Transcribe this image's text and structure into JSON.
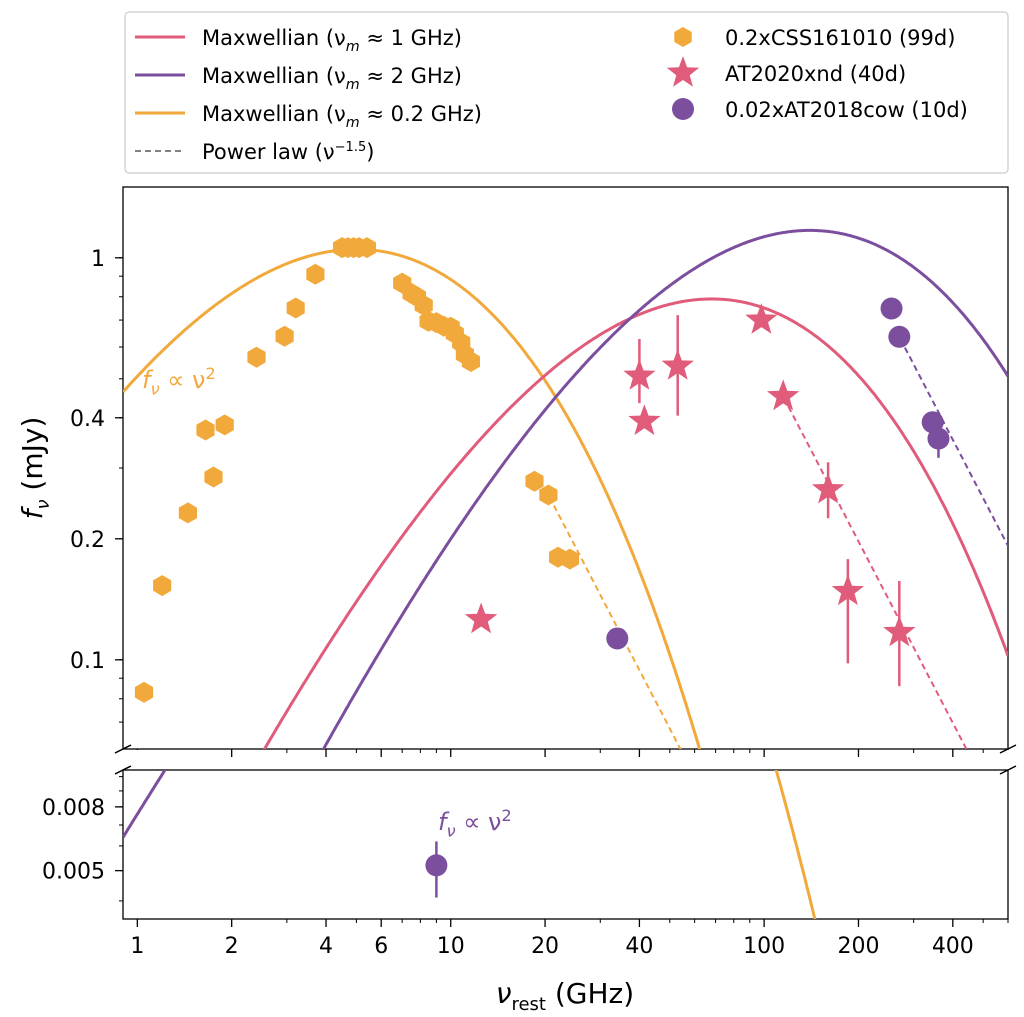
{
  "chart_data": {
    "type": "scatter",
    "xlabel_main": "ν",
    "xlabel_sub": "rest",
    "xlabel_unit": " (GHz)",
    "ylabel_main": "f",
    "ylabel_sub": "ν",
    "ylabel_unit": " (mJy)",
    "x_scale": "log",
    "y_scale": "log",
    "xlim": [
      0.9,
      600
    ],
    "ylim_top_panel": [
      0.06,
      1.5
    ],
    "ylim_bottom_panel": [
      0.0035,
      0.0105
    ],
    "broken_y_axis": true,
    "grid": false,
    "legend_placement": "above plot",
    "x_ticks": [
      {
        "value": 1,
        "label": "1"
      },
      {
        "value": 2,
        "label": "2"
      },
      {
        "value": 4,
        "label": "4"
      },
      {
        "value": 6,
        "label": "6"
      },
      {
        "value": 10,
        "label": "10"
      },
      {
        "value": 20,
        "label": "20"
      },
      {
        "value": 40,
        "label": "40"
      },
      {
        "value": 100,
        "label": "100"
      },
      {
        "value": 200,
        "label": "200"
      },
      {
        "value": 400,
        "label": "400"
      }
    ],
    "y_ticks_top": [
      {
        "value": 1,
        "label": "1"
      },
      {
        "value": 0.4,
        "label": "0.4"
      },
      {
        "value": 0.2,
        "label": "0.2"
      },
      {
        "value": 0.1,
        "label": "0.1"
      }
    ],
    "y_ticks_bottom": [
      {
        "value": 0.008,
        "label": "0.008"
      },
      {
        "value": 0.005,
        "label": "0.005"
      }
    ],
    "legend": [
      {
        "key": "maxwell_1",
        "text": "Maxwellian (ν",
        "sub": "m",
        "tail": " ≈ 1 GHz)",
        "marker": "line",
        "color": "#e05c7a"
      },
      {
        "key": "maxwell_2",
        "text": "Maxwellian (ν",
        "sub": "m",
        "tail": " ≈ 2 GHz)",
        "marker": "line",
        "color": "#7b4f9e"
      },
      {
        "key": "maxwell_02",
        "text": "Maxwellian (ν",
        "sub": "m",
        "tail": " ≈ 0.2 GHz)",
        "marker": "line",
        "color": "#f2a93b"
      },
      {
        "key": "power_law",
        "text": "Power law (ν",
        "sup": "−1.5",
        "tail": ")",
        "marker": "dashed",
        "color": "#808080"
      },
      {
        "key": "css",
        "text": "0.2xCSS161010 (99d)",
        "marker": "hexagon",
        "color": "#f2a93b"
      },
      {
        "key": "at2020xnd",
        "text": "AT2020xnd (40d)",
        "marker": "star",
        "color": "#e05c7a"
      },
      {
        "key": "at2018cow",
        "text": "0.02xAT2018cow (10d)",
        "marker": "circle",
        "color": "#7b4f9e"
      }
    ],
    "annotations": [
      {
        "key": "slope_orange",
        "text": "f",
        "sub": "ν",
        "tail": " ∝ ν",
        "sup": "2",
        "color": "#f2a93b"
      },
      {
        "key": "slope_purple",
        "text": "f",
        "sub": "ν",
        "tail": " ∝ ν",
        "sup": "2",
        "color": "#7b4f9e"
      }
    ],
    "series": [
      {
        "key": "css",
        "name": "0.2xCSS161010 (99d)",
        "marker": "hexagon",
        "color": "#f2a93b",
        "points": [
          {
            "x": 1.05,
            "y": 0.083
          },
          {
            "x": 1.2,
            "y": 0.153
          },
          {
            "x": 1.45,
            "y": 0.232
          },
          {
            "x": 1.65,
            "y": 0.373
          },
          {
            "x": 1.75,
            "y": 0.285
          },
          {
            "x": 1.9,
            "y": 0.384
          },
          {
            "x": 2.4,
            "y": 0.566
          },
          {
            "x": 2.95,
            "y": 0.638
          },
          {
            "x": 3.2,
            "y": 0.75
          },
          {
            "x": 3.7,
            "y": 0.91
          },
          {
            "x": 4.5,
            "y": 1.06
          },
          {
            "x": 4.7,
            "y": 1.06
          },
          {
            "x": 4.9,
            "y": 1.06
          },
          {
            "x": 5.1,
            "y": 1.06
          },
          {
            "x": 5.4,
            "y": 1.06
          },
          {
            "x": 7.0,
            "y": 0.865
          },
          {
            "x": 7.5,
            "y": 0.815
          },
          {
            "x": 7.8,
            "y": 0.8
          },
          {
            "x": 8.2,
            "y": 0.762
          },
          {
            "x": 8.5,
            "y": 0.695
          },
          {
            "x": 9.0,
            "y": 0.69
          },
          {
            "x": 9.5,
            "y": 0.676
          },
          {
            "x": 10.0,
            "y": 0.672
          },
          {
            "x": 10.3,
            "y": 0.648
          },
          {
            "x": 10.8,
            "y": 0.615
          },
          {
            "x": 11.1,
            "y": 0.575
          },
          {
            "x": 11.6,
            "y": 0.552
          },
          {
            "x": 18.5,
            "y": 0.278
          },
          {
            "x": 20.5,
            "y": 0.257
          },
          {
            "x": 22.0,
            "y": 0.18
          },
          {
            "x": 24.0,
            "y": 0.178
          }
        ]
      },
      {
        "key": "at2020xnd",
        "name": "AT2020xnd (40d)",
        "marker": "star",
        "color": "#e05c7a",
        "points": [
          {
            "x": 12.5,
            "y": 0.126
          },
          {
            "x": 40.0,
            "y": 0.508,
            "yerr_lo": 0.435,
            "yerr_hi": 0.628
          },
          {
            "x": 41.5,
            "y": 0.392
          },
          {
            "x": 53.0,
            "y": 0.538,
            "yerr_lo": 0.405,
            "yerr_hi": 0.72
          },
          {
            "x": 98.0,
            "y": 0.7
          },
          {
            "x": 115.0,
            "y": 0.452
          },
          {
            "x": 160.0,
            "y": 0.265,
            "yerr_lo": 0.225,
            "yerr_hi": 0.31
          },
          {
            "x": 185.0,
            "y": 0.148,
            "yerr_lo": 0.098,
            "yerr_hi": 0.178
          },
          {
            "x": 270.0,
            "y": 0.117,
            "yerr_lo": 0.086,
            "yerr_hi": 0.157
          }
        ]
      },
      {
        "key": "at2018cow_top",
        "name": "0.02xAT2018cow (10d)",
        "marker": "circle",
        "color": "#7b4f9e",
        "points": [
          {
            "x": 34.0,
            "y": 0.113
          },
          {
            "x": 255.0,
            "y": 0.748
          },
          {
            "x": 270.0,
            "y": 0.636
          },
          {
            "x": 345.0,
            "y": 0.39
          },
          {
            "x": 360.0,
            "y": 0.355,
            "yerr_lo": 0.318,
            "yerr_hi": 0.392
          }
        ]
      },
      {
        "key": "at2018cow_bottom",
        "name": "0.02xAT2018cow (10d)",
        "marker": "circle",
        "color": "#7b4f9e",
        "points": [
          {
            "x": 9.0,
            "y": 0.0052,
            "yerr_lo": 0.0041,
            "yerr_hi": 0.0062
          }
        ]
      }
    ],
    "curves": [
      {
        "key": "maxwell_02",
        "color": "#f2a93b",
        "style": "solid",
        "nu_peak": 5.0,
        "f_peak": 1.05
      },
      {
        "key": "maxwell_1",
        "color": "#e05c7a",
        "style": "solid",
        "nu_peak": 68.0,
        "f_peak": 0.79
      },
      {
        "key": "maxwell_2",
        "color": "#7b4f9e",
        "style": "solid",
        "nu_peak": 140.0,
        "f_peak": 1.17
      },
      {
        "key": "pl_orange",
        "color": "#f2a93b",
        "style": "dashed",
        "from": {
          "x": 20.5,
          "y": 0.257
        },
        "slope": -1.5
      },
      {
        "key": "pl_pink",
        "color": "#e05c7a",
        "style": "dashed",
        "from": {
          "x": 115.0,
          "y": 0.452
        },
        "slope": -1.5
      },
      {
        "key": "pl_purple",
        "color": "#7b4f9e",
        "style": "dashed",
        "from": {
          "x": 270.0,
          "y": 0.636
        },
        "slope": -1.5
      }
    ]
  }
}
